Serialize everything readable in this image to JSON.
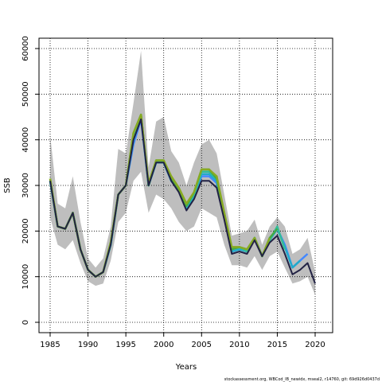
{
  "chart_data": {
    "type": "line",
    "title": "",
    "xlabel": "Years",
    "ylabel": "SSB",
    "xlim": [
      1985,
      2020
    ],
    "ylim": [
      0,
      60000
    ],
    "xticks": [
      "1985",
      "1990",
      "1995",
      "2000",
      "2005",
      "2010",
      "2015",
      "2020"
    ],
    "yticks": [
      "0",
      "10000",
      "20000",
      "30000",
      "40000",
      "50000",
      "60000"
    ],
    "grid": true,
    "colors": {
      "band": "#bebebe",
      "series": [
        "#4488ff",
        "#22aacc",
        "#33bb99",
        "#44aa44",
        "#88aa22",
        "#222244"
      ]
    },
    "band": {
      "x": [
        1985,
        1986,
        1987,
        1988,
        1989,
        1990,
        1991,
        1992,
        1993,
        1994,
        1995,
        1996,
        1997,
        1998,
        1999,
        2000,
        2001,
        2002,
        2003,
        2004,
        2005,
        2006,
        2007,
        2008,
        2009,
        2010,
        2011,
        2012,
        2013,
        2014,
        2015,
        2016,
        2017,
        2018,
        2019,
        2020
      ],
      "upper": [
        41000,
        26000,
        25000,
        32000,
        22000,
        14000,
        12000,
        14000,
        21000,
        38000,
        37000,
        48000,
        59500,
        34000,
        44000,
        45000,
        37500,
        35000,
        30000,
        35000,
        39000,
        40000,
        37000,
        28000,
        19000,
        19500,
        20000,
        22500,
        17000,
        21000,
        23000,
        21000,
        15000,
        16000,
        18500,
        11000
      ],
      "lower": [
        23000,
        17000,
        16000,
        18000,
        13000,
        9000,
        8000,
        8500,
        13500,
        22000,
        24000,
        31000,
        33000,
        24000,
        28000,
        27000,
        25000,
        22000,
        20000,
        21000,
        25000,
        24000,
        23000,
        17000,
        12500,
        12500,
        12000,
        14500,
        11500,
        14500,
        15500,
        12000,
        8500,
        9000,
        10000,
        6000
      ]
    },
    "series": [
      {
        "values": [
          31000,
          21000,
          20500,
          24000,
          16000,
          11500,
          10000,
          11000,
          17000,
          28000,
          30000,
          39000,
          44500,
          30000,
          35000,
          35000,
          31000,
          29000,
          25000,
          27500,
          32000,
          32000,
          30500,
          23000,
          15500,
          16000,
          15500,
          18500,
          14500,
          18000,
          20500,
          17000,
          12000,
          13500,
          15000,
          null
        ]
      },
      {
        "values": [
          31000,
          21000,
          20500,
          24000,
          16000,
          11500,
          10000,
          11000,
          17000,
          28000,
          30000,
          40000,
          45000,
          30000,
          35000,
          35000,
          31000,
          29000,
          25000,
          27500,
          32500,
          32500,
          31000,
          23000,
          15500,
          16000,
          15500,
          18500,
          14500,
          18000,
          20500,
          16500,
          12000,
          13500,
          null,
          null
        ]
      },
      {
        "values": [
          31000,
          21000,
          20500,
          24000,
          16000,
          11500,
          10000,
          11000,
          17000,
          28000,
          30000,
          41000,
          45500,
          30000,
          35500,
          35000,
          31500,
          29000,
          25500,
          28000,
          33000,
          33000,
          31500,
          23500,
          16000,
          16500,
          15500,
          18500,
          14500,
          18000,
          21000,
          16000,
          null,
          null,
          null,
          null
        ]
      },
      {
        "values": [
          31500,
          21000,
          20500,
          24000,
          16000,
          11500,
          10000,
          11000,
          17500,
          28000,
          30000,
          41500,
          45500,
          30000,
          35500,
          35500,
          31500,
          29000,
          25500,
          28500,
          33500,
          33500,
          31500,
          24000,
          16000,
          16500,
          16000,
          18500,
          14500,
          18500,
          20500,
          null,
          null,
          null,
          null,
          null
        ]
      },
      {
        "values": [
          31500,
          21000,
          20500,
          24000,
          16000,
          11500,
          10000,
          11000,
          17500,
          28000,
          30000,
          41500,
          45500,
          30500,
          35500,
          35500,
          32000,
          29500,
          26000,
          28500,
          33500,
          33500,
          32000,
          24000,
          16500,
          16500,
          16000,
          18500,
          14500,
          18500,
          null,
          null,
          null,
          null,
          null,
          null
        ]
      },
      {
        "values": [
          31000,
          21000,
          20500,
          24000,
          16000,
          11500,
          10000,
          11000,
          17000,
          28000,
          30000,
          40000,
          44500,
          30000,
          35000,
          35000,
          31000,
          28500,
          24500,
          27000,
          31000,
          31000,
          29500,
          22500,
          15000,
          15500,
          15000,
          18000,
          14500,
          17500,
          19000,
          15000,
          10500,
          11500,
          13000,
          8500
        ]
      }
    ]
  },
  "footer": "stockassessment.org, WBCod_IB_newidx, mseal2, r14760, git: 69d926d0437d"
}
